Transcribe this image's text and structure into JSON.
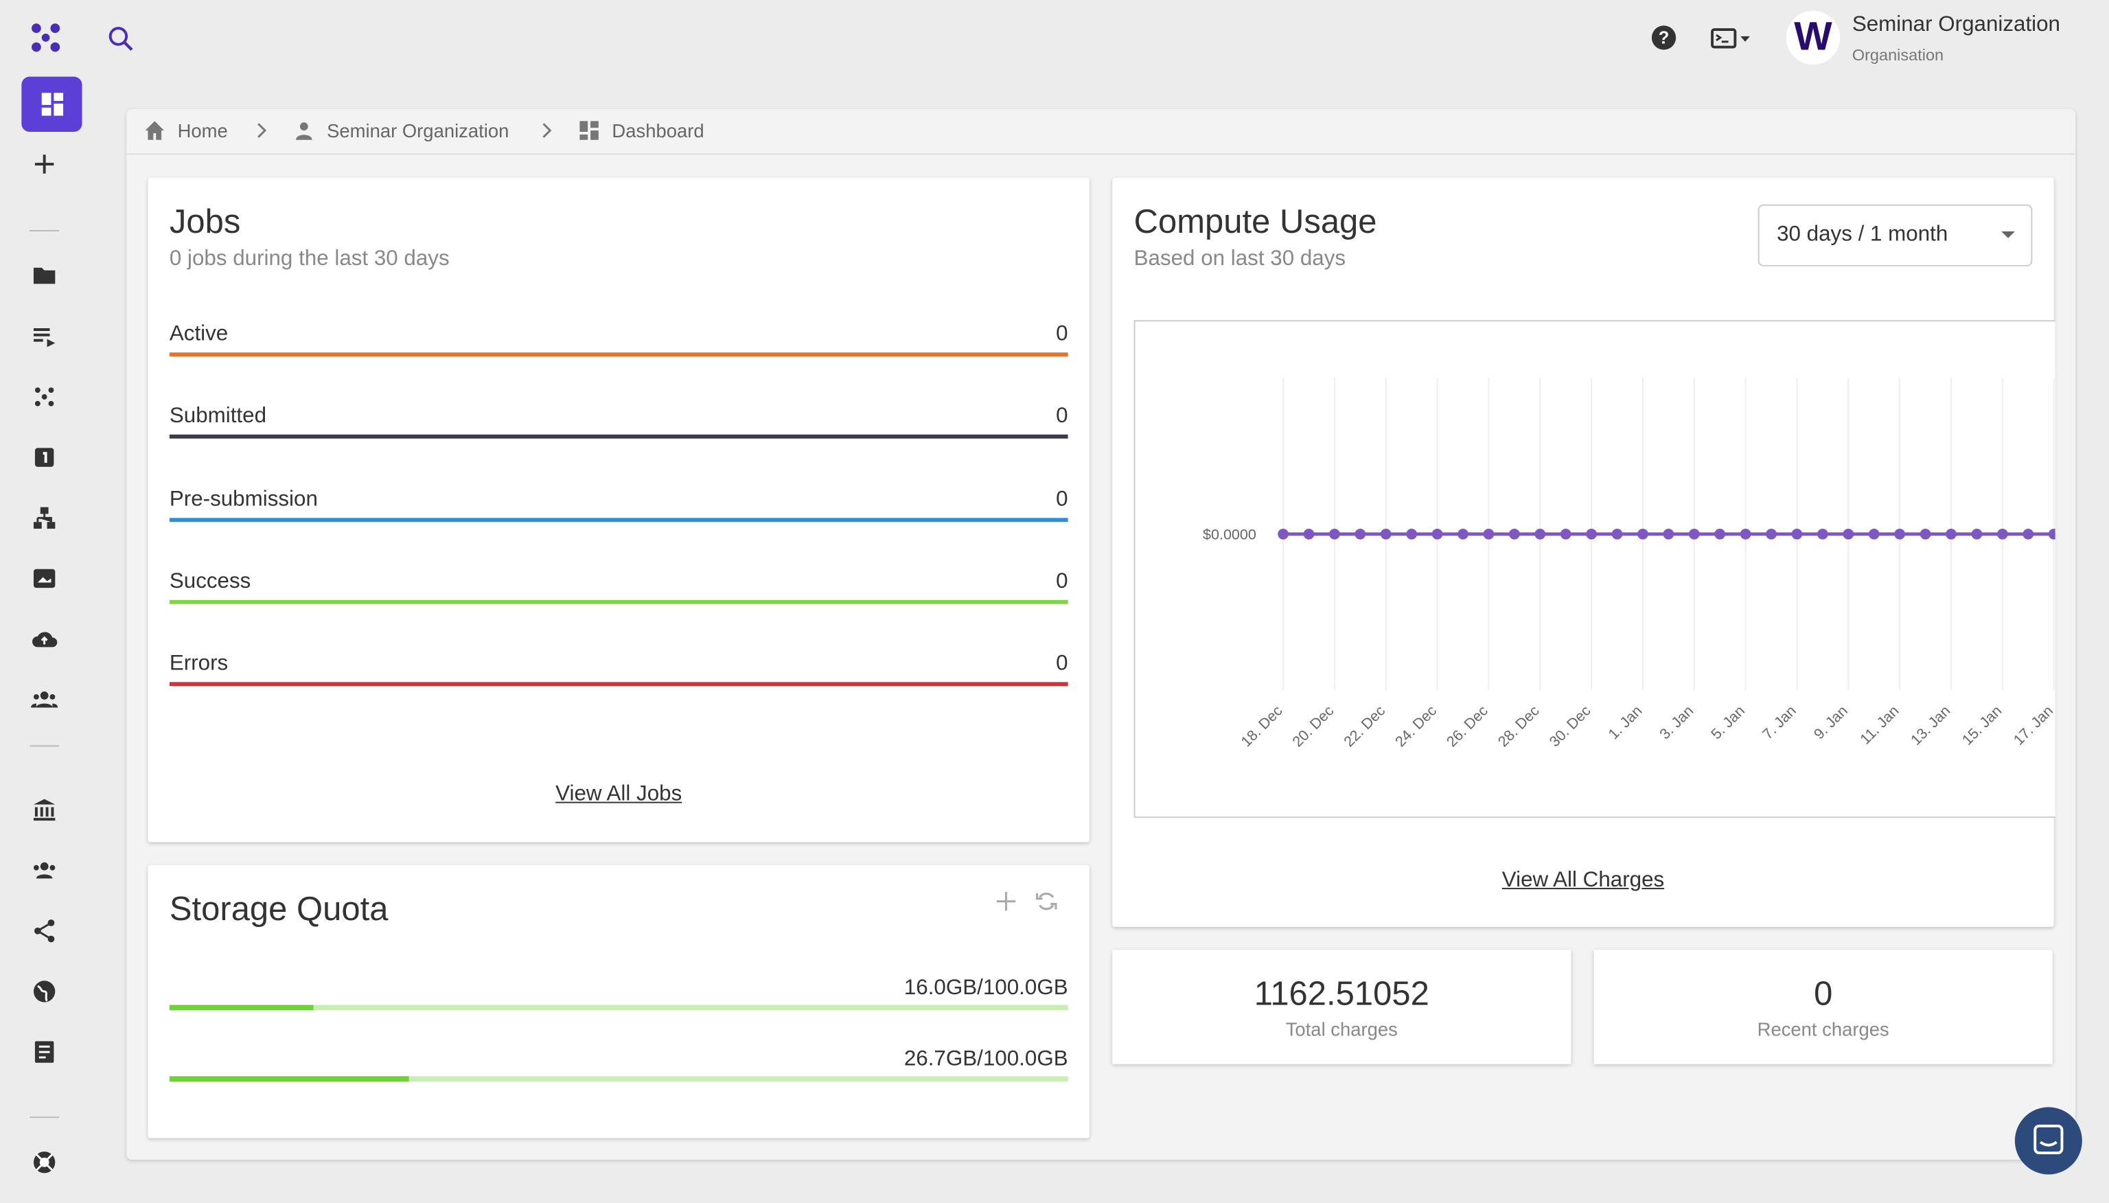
{
  "header": {
    "avatar": "W",
    "org_name": "Seminar Organization",
    "org_type": "Organisation"
  },
  "breadcrumb": [
    "Home",
    "Seminar Organization",
    "Dashboard"
  ],
  "jobs": {
    "title": "Jobs",
    "subtitle": "0 jobs during the last 30 days",
    "rows": [
      {
        "label": "Active",
        "value": 0,
        "color": "#ea7125"
      },
      {
        "label": "Submitted",
        "value": 0,
        "color": "#3b3a4a"
      },
      {
        "label": "Pre-submission",
        "value": 0,
        "color": "#2d8fd5"
      },
      {
        "label": "Success",
        "value": 0,
        "color": "#7ed63a"
      },
      {
        "label": "Errors",
        "value": 0,
        "color": "#d0323a"
      }
    ],
    "link": "View All Jobs"
  },
  "storage": {
    "title": "Storage Quota",
    "rows": [
      {
        "label": "16.0GB/100.0GB",
        "used": 16.0,
        "total": 100.0
      },
      {
        "label": "26.7GB/100.0GB",
        "used": 26.7,
        "total": 100.0
      }
    ]
  },
  "compute": {
    "title": "Compute Usage",
    "subtitle": "Based on last 30 days",
    "range": "30 days / 1 month",
    "link": "View All Charges"
  },
  "chart_data": {
    "type": "line",
    "color": "#7e57c2",
    "categories": [
      "18. Dec",
      null,
      "20. Dec",
      null,
      "22. Dec",
      null,
      "24. Dec",
      null,
      "26. Dec",
      null,
      "28. Dec",
      null,
      "30. Dec",
      null,
      "1. Jan",
      null,
      "3. Jan",
      null,
      "5. Jan",
      null,
      "7. Jan",
      null,
      "9. Jan",
      null,
      "11. Jan",
      null,
      "13. Jan",
      null,
      "15. Jan",
      null,
      "17. Jan"
    ],
    "values": [
      0,
      0,
      0,
      0,
      0,
      0,
      0,
      0,
      0,
      0,
      0,
      0,
      0,
      0,
      0,
      0,
      0,
      0,
      0,
      0,
      0,
      0,
      0,
      0,
      0,
      0,
      0,
      0,
      0,
      0,
      0
    ],
    "ylim": [
      -1,
      1
    ],
    "yticks": [
      {
        "value": 0,
        "label": "$0.0000"
      }
    ],
    "grid": true
  },
  "stats": [
    {
      "value": "1162.51052",
      "label": "Total charges"
    },
    {
      "value": "0",
      "label": "Recent charges"
    }
  ]
}
